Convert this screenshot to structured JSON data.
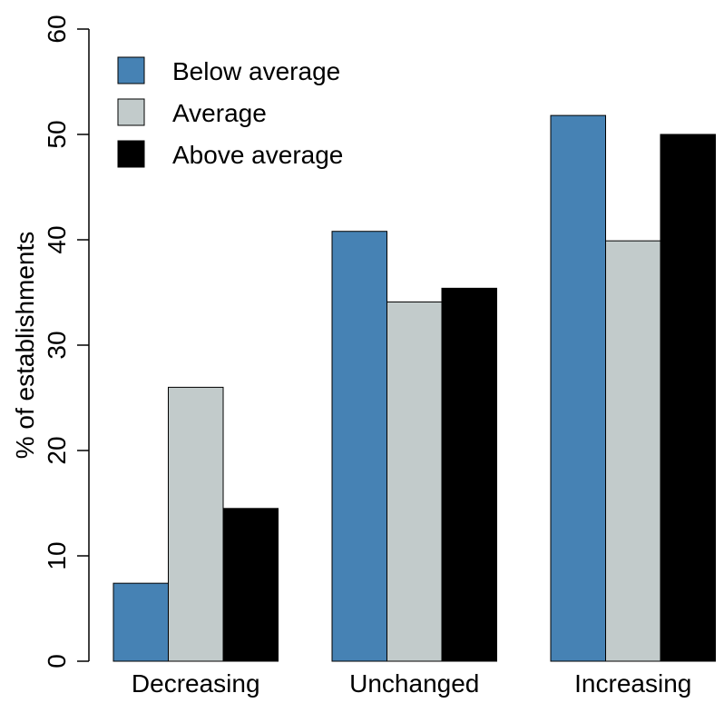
{
  "chart_data": {
    "type": "bar",
    "categories": [
      "Decreasing",
      "Unchanged",
      "Increasing"
    ],
    "series": [
      {
        "name": "Below average",
        "values": [
          7.4,
          40.8,
          51.8
        ],
        "color": "#4682B4"
      },
      {
        "name": "Average",
        "values": [
          26.0,
          34.1,
          39.9
        ],
        "color": "#C2CBCB"
      },
      {
        "name": "Above average",
        "values": [
          14.5,
          35.4,
          50.0
        ],
        "color": "#000000"
      }
    ],
    "title": "",
    "xlabel": "",
    "ylabel": "% of establishments",
    "ylim": [
      0,
      60
    ],
    "yticks": [
      0,
      10,
      20,
      30,
      40,
      50,
      60
    ],
    "grid": false,
    "legend_position": "top-left"
  }
}
